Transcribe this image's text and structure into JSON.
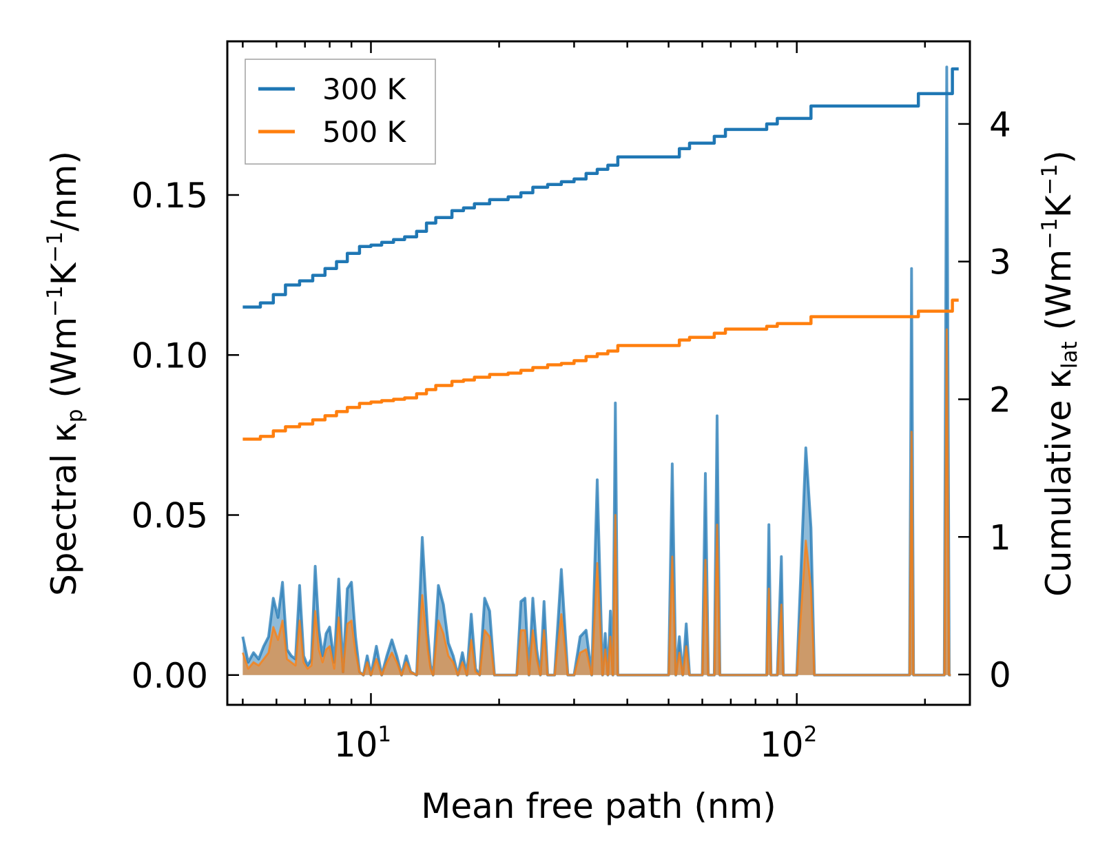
{
  "chart_data": {
    "type": "line",
    "xscale": "log",
    "xlabel": "Mean free path (nm)",
    "ylabel_left": "Spectral κp (Wm−1K−1/nm)",
    "ylabel_right": "Cumulative κlat (Wm−1K−1)",
    "ylabel_left_parts": {
      "a": "Spectral κ",
      "sub": "p",
      "b": " (Wm",
      "s1": "−1",
      "c": "K",
      "s2": "−1",
      "d": "/nm)"
    },
    "ylabel_right_parts": {
      "a": "Cumulative κ",
      "sub": "lat",
      "b": " (Wm",
      "s1": "−1",
      "c": "K",
      "s2": "−1",
      "d": ")"
    },
    "xlim": [
      4.6,
      255
    ],
    "ylim_left": [
      -0.0093,
      0.198
    ],
    "ylim_right": [
      -0.22,
      4.6
    ],
    "x_ticks": [
      {
        "value": 10,
        "base": "10",
        "exp": "1"
      },
      {
        "value": 100,
        "base": "10",
        "exp": "2"
      }
    ],
    "y_ticks_left": [
      "0.00",
      "0.05",
      "0.10",
      "0.15"
    ],
    "y_ticks_right": [
      "0",
      "1",
      "2",
      "3",
      "4"
    ],
    "legend": {
      "position": "top-left",
      "entries": [
        "300 K",
        "500 K"
      ]
    },
    "colors": {
      "300 K": "#1f77b4",
      "500 K": "#ff7f0e",
      "fill_300": "#1f77b4",
      "fill_500": "#ff7f0e"
    },
    "cumulative": [
      {
        "name": "300 K",
        "axis": "right",
        "x": [
          5.0,
          5.5,
          5.9,
          6.3,
          6.8,
          7.3,
          7.8,
          8.3,
          8.8,
          9.4,
          10.0,
          10.6,
          11.3,
          12.0,
          12.8,
          13.5,
          14.2,
          15.5,
          16.5,
          17.5,
          19.0,
          21.0,
          22.5,
          24.0,
          26.0,
          28.0,
          30.0,
          32.0,
          34.0,
          36.0,
          38.0,
          40.0,
          45.0,
          50.0,
          53.0,
          56.0,
          60.0,
          64.0,
          68.0,
          72.0,
          78.0,
          85.0,
          90.0,
          95.0,
          100.0,
          108.0,
          113.0,
          125.0,
          150.0,
          175.0,
          188.0,
          193.0,
          200.0,
          215.0,
          225.0,
          232.0,
          240.0
        ],
        "values": [
          2.67,
          2.7,
          2.76,
          2.83,
          2.86,
          2.9,
          2.95,
          3.0,
          3.06,
          3.11,
          3.12,
          3.14,
          3.16,
          3.18,
          3.22,
          3.28,
          3.32,
          3.37,
          3.39,
          3.42,
          3.45,
          3.47,
          3.5,
          3.54,
          3.56,
          3.58,
          3.6,
          3.64,
          3.67,
          3.7,
          3.76,
          3.76,
          3.76,
          3.76,
          3.82,
          3.86,
          3.86,
          3.91,
          3.96,
          3.96,
          3.96,
          4.0,
          4.04,
          4.04,
          4.04,
          4.13,
          4.13,
          4.13,
          4.13,
          4.13,
          4.13,
          4.22,
          4.22,
          4.22,
          4.22,
          4.4,
          4.4
        ]
      },
      {
        "name": "500 K",
        "axis": "right",
        "x": [
          5.0,
          5.5,
          5.9,
          6.3,
          6.8,
          7.3,
          7.8,
          8.3,
          8.8,
          9.4,
          10.0,
          10.6,
          11.3,
          12.0,
          12.8,
          13.5,
          14.2,
          15.5,
          16.5,
          17.5,
          19.0,
          21.0,
          22.5,
          24.0,
          26.0,
          28.0,
          30.0,
          32.0,
          34.0,
          36.0,
          38.0,
          40.0,
          45.0,
          50.0,
          53.0,
          56.0,
          60.0,
          64.0,
          68.0,
          72.0,
          78.0,
          85.0,
          90.0,
          95.0,
          100.0,
          108.0,
          113.0,
          125.0,
          150.0,
          175.0,
          188.0,
          193.0,
          200.0,
          215.0,
          225.0,
          232.0,
          240.0
        ],
        "values": [
          1.71,
          1.73,
          1.77,
          1.8,
          1.82,
          1.85,
          1.88,
          1.91,
          1.94,
          1.97,
          1.98,
          1.99,
          2.0,
          2.01,
          2.04,
          2.07,
          2.1,
          2.13,
          2.14,
          2.16,
          2.18,
          2.19,
          2.21,
          2.23,
          2.25,
          2.26,
          2.28,
          2.31,
          2.33,
          2.35,
          2.39,
          2.39,
          2.39,
          2.39,
          2.43,
          2.45,
          2.45,
          2.48,
          2.51,
          2.51,
          2.51,
          2.53,
          2.55,
          2.55,
          2.55,
          2.6,
          2.6,
          2.6,
          2.6,
          2.6,
          2.6,
          2.64,
          2.64,
          2.64,
          2.64,
          2.72,
          2.72
        ]
      }
    ],
    "spectral": [
      {
        "name": "300 K",
        "axis": "left",
        "x": [
          5.0,
          5.15,
          5.3,
          5.45,
          5.6,
          5.75,
          5.9,
          6.05,
          6.2,
          6.35,
          6.5,
          6.65,
          6.8,
          6.95,
          7.1,
          7.25,
          7.4,
          7.55,
          7.7,
          7.85,
          8.0,
          8.2,
          8.4,
          8.6,
          8.8,
          9.0,
          9.2,
          9.4,
          9.6,
          9.8,
          10.0,
          10.3,
          10.6,
          10.9,
          11.2,
          11.5,
          11.8,
          12.1,
          12.4,
          12.8,
          13.2,
          13.6,
          13.8,
          14.0,
          14.4,
          14.8,
          15.2,
          15.6,
          16.0,
          16.4,
          16.8,
          17.2,
          17.6,
          18.0,
          18.5,
          19.0,
          19.5,
          20.0,
          21.0,
          22.0,
          22.5,
          23.0,
          23.5,
          24.0,
          24.5,
          25.0,
          25.5,
          26.0,
          26.5,
          27.0,
          28.0,
          29.0,
          30.0,
          31.0,
          32.0,
          33.0,
          34.0,
          35.0,
          35.5,
          36.0,
          36.5,
          37.0,
          37.5,
          38.0,
          40.0,
          45.0,
          50.0,
          51.0,
          52.0,
          53.0,
          54.0,
          55.0,
          56.0,
          58.0,
          60.0,
          61.0,
          62.0,
          63.0,
          64.0,
          65.0,
          66.0,
          67.0,
          70.0,
          80.0,
          85.0,
          86.0,
          87.0,
          88.0,
          90.0,
          92.0,
          93.0,
          94.0,
          95.0,
          100.0,
          105.0,
          108.0,
          110.0,
          113.0,
          118.0,
          130.0,
          150.0,
          170.0,
          184.0,
          186.0,
          188.0,
          190.0,
          192.0,
          200.0,
          215.0,
          222.0,
          225.0,
          228.0,
          230.0
        ],
        "values": [
          0.012,
          0.004,
          0.007,
          0.005,
          0.009,
          0.012,
          0.024,
          0.018,
          0.029,
          0.008,
          0.006,
          0.005,
          0.028,
          0.006,
          0.003,
          0.005,
          0.034,
          0.014,
          0.006,
          0.013,
          0.015,
          0.004,
          0.03,
          0.001,
          0.027,
          0.029,
          0.012,
          0.001,
          0.0,
          0.006,
          0.0,
          0.009,
          0.0,
          0.006,
          0.011,
          0.006,
          0.0,
          0.006,
          0.001,
          0.0,
          0.043,
          0.013,
          0.003,
          0.0,
          0.028,
          0.022,
          0.01,
          0.006,
          0.0,
          0.007,
          0.0,
          0.019,
          0.002,
          0.0,
          0.024,
          0.02,
          0.0,
          0.0,
          0.0,
          0.0,
          0.023,
          0.024,
          0.0,
          0.024,
          0.008,
          0.0,
          0.023,
          0.0,
          0.0,
          0.0,
          0.033,
          0.0,
          0.0,
          0.012,
          0.014,
          0.0,
          0.061,
          0.0,
          0.013,
          0.0,
          0.02,
          0.0,
          0.085,
          0.0,
          0.0,
          0.0,
          0.0,
          0.066,
          0.0,
          0.012,
          0.0,
          0.016,
          0.0,
          0.0,
          0.0,
          0.063,
          0.0,
          0.0,
          0.0,
          0.081,
          0.0,
          0.0,
          0.0,
          0.0,
          0.0,
          0.047,
          0.0,
          0.0,
          0.0,
          0.037,
          0.0,
          0.0,
          0.0,
          0.0,
          0.071,
          0.046,
          0.0,
          0.0,
          0.0,
          0.0,
          0.0,
          0.0,
          0.0,
          0.127,
          0.0,
          0.0,
          0.0,
          0.0,
          0.0,
          0.0,
          0.19,
          0.0,
          0.0
        ]
      },
      {
        "name": "500 K",
        "axis": "left",
        "x": [
          5.0,
          5.15,
          5.3,
          5.45,
          5.6,
          5.75,
          5.9,
          6.05,
          6.2,
          6.35,
          6.5,
          6.65,
          6.8,
          6.95,
          7.1,
          7.25,
          7.4,
          7.55,
          7.7,
          7.85,
          8.0,
          8.2,
          8.4,
          8.6,
          8.8,
          9.0,
          9.2,
          9.4,
          9.6,
          9.8,
          10.0,
          10.3,
          10.6,
          10.9,
          11.2,
          11.5,
          11.8,
          12.1,
          12.4,
          12.8,
          13.2,
          13.6,
          13.8,
          14.0,
          14.4,
          14.8,
          15.2,
          15.6,
          16.0,
          16.4,
          16.8,
          17.2,
          17.6,
          18.0,
          18.5,
          19.0,
          19.5,
          20.0,
          21.0,
          22.0,
          22.5,
          23.0,
          23.5,
          24.0,
          24.5,
          25.0,
          25.5,
          26.0,
          26.5,
          27.0,
          28.0,
          29.0,
          30.0,
          31.0,
          32.0,
          33.0,
          34.0,
          35.0,
          35.5,
          36.0,
          36.5,
          37.0,
          37.5,
          38.0,
          40.0,
          45.0,
          50.0,
          51.0,
          52.0,
          53.0,
          54.0,
          55.0,
          56.0,
          58.0,
          60.0,
          61.0,
          62.0,
          63.0,
          64.0,
          65.0,
          66.0,
          67.0,
          70.0,
          80.0,
          85.0,
          86.0,
          87.0,
          88.0,
          90.0,
          92.0,
          93.0,
          94.0,
          95.0,
          100.0,
          105.0,
          108.0,
          110.0,
          113.0,
          118.0,
          130.0,
          150.0,
          170.0,
          184.0,
          186.0,
          188.0,
          190.0,
          192.0,
          200.0,
          215.0,
          222.0,
          225.0,
          228.0,
          230.0
        ],
        "values": [
          0.007,
          0.002,
          0.004,
          0.003,
          0.005,
          0.007,
          0.015,
          0.011,
          0.017,
          0.005,
          0.004,
          0.003,
          0.017,
          0.004,
          0.002,
          0.003,
          0.02,
          0.008,
          0.004,
          0.008,
          0.009,
          0.002,
          0.018,
          0.001,
          0.016,
          0.017,
          0.007,
          0.001,
          0.0,
          0.004,
          0.0,
          0.005,
          0.0,
          0.004,
          0.007,
          0.004,
          0.0,
          0.004,
          0.001,
          0.0,
          0.025,
          0.008,
          0.002,
          0.0,
          0.017,
          0.013,
          0.006,
          0.004,
          0.0,
          0.004,
          0.0,
          0.011,
          0.001,
          0.0,
          0.014,
          0.012,
          0.0,
          0.0,
          0.0,
          0.0,
          0.014,
          0.014,
          0.0,
          0.014,
          0.005,
          0.0,
          0.014,
          0.0,
          0.0,
          0.0,
          0.019,
          0.0,
          0.0,
          0.007,
          0.008,
          0.0,
          0.035,
          0.0,
          0.008,
          0.0,
          0.012,
          0.0,
          0.05,
          0.0,
          0.0,
          0.0,
          0.0,
          0.037,
          0.0,
          0.007,
          0.0,
          0.009,
          0.0,
          0.0,
          0.0,
          0.036,
          0.0,
          0.0,
          0.0,
          0.047,
          0.0,
          0.0,
          0.0,
          0.0,
          0.0,
          0.027,
          0.0,
          0.0,
          0.0,
          0.022,
          0.0,
          0.0,
          0.0,
          0.0,
          0.042,
          0.027,
          0.0,
          0.0,
          0.0,
          0.0,
          0.0,
          0.0,
          0.0,
          0.076,
          0.0,
          0.0,
          0.0,
          0.0,
          0.0,
          0.0,
          0.108,
          0.0,
          0.0
        ]
      }
    ]
  }
}
